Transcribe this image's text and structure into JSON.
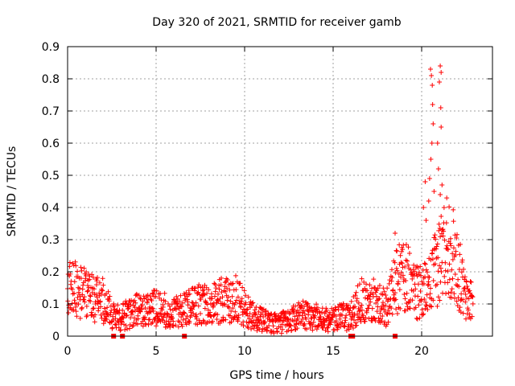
{
  "chart_data": {
    "type": "scatter",
    "title": "Day 320 of 2021, SRMTID for receiver gamb",
    "xlabel": "GPS time / hours",
    "ylabel": "SRMTID / TECUs",
    "xlim": [
      0,
      24
    ],
    "ylim": [
      0,
      0.9
    ],
    "x_ticks": [
      0,
      5,
      10,
      15,
      20
    ],
    "x_tick_labels": [
      "0",
      "5",
      "10",
      "15",
      "20"
    ],
    "y_ticks": [
      0,
      0.1,
      0.2,
      0.3,
      0.4,
      0.5,
      0.6,
      0.7,
      0.8,
      0.9
    ],
    "y_tick_labels": [
      "0",
      "0.1",
      "0.2",
      "0.3",
      "0.4",
      "0.5",
      "0.6",
      "0.7",
      "0.8",
      "0.9"
    ],
    "grid": true,
    "marker": "+",
    "color": "#ff0000",
    "x_data_max": 22.9,
    "envelope_hours": [
      0,
      0.5,
      1,
      1.5,
      2,
      2.5,
      3,
      3.5,
      4,
      4.5,
      5,
      5.5,
      6,
      6.5,
      7,
      7.5,
      8,
      8.5,
      9,
      9.5,
      10,
      10.5,
      11,
      11.5,
      12,
      12.5,
      13,
      13.5,
      14,
      14.5,
      15,
      15.5,
      16,
      16.5,
      17,
      17.5,
      18,
      18.5,
      19,
      19.5,
      20,
      20.5,
      21,
      21.5,
      22,
      22.5,
      23
    ],
    "envelope_mean": [
      0.16,
      0.14,
      0.13,
      0.12,
      0.11,
      0.07,
      0.06,
      0.07,
      0.08,
      0.08,
      0.09,
      0.08,
      0.07,
      0.08,
      0.09,
      0.1,
      0.1,
      0.11,
      0.11,
      0.12,
      0.09,
      0.06,
      0.05,
      0.04,
      0.04,
      0.05,
      0.06,
      0.07,
      0.06,
      0.05,
      0.05,
      0.06,
      0.06,
      0.11,
      0.12,
      0.1,
      0.09,
      0.16,
      0.2,
      0.15,
      0.13,
      0.16,
      0.24,
      0.3,
      0.22,
      0.11,
      0.12
    ],
    "outliers": [
      {
        "x": 18.5,
        "y": 0.32
      },
      {
        "x": 20.5,
        "y": 0.83
      },
      {
        "x": 20.55,
        "y": 0.81
      },
      {
        "x": 20.6,
        "y": 0.78
      },
      {
        "x": 20.62,
        "y": 0.72
      },
      {
        "x": 20.65,
        "y": 0.66
      },
      {
        "x": 20.58,
        "y": 0.6
      },
      {
        "x": 20.52,
        "y": 0.55
      },
      {
        "x": 20.45,
        "y": 0.49
      },
      {
        "x": 20.7,
        "y": 0.45
      },
      {
        "x": 20.4,
        "y": 0.42
      },
      {
        "x": 21.05,
        "y": 0.84
      },
      {
        "x": 21.1,
        "y": 0.82
      },
      {
        "x": 21.0,
        "y": 0.79
      },
      {
        "x": 21.08,
        "y": 0.71
      },
      {
        "x": 21.1,
        "y": 0.65
      },
      {
        "x": 20.9,
        "y": 0.6
      },
      {
        "x": 20.95,
        "y": 0.52
      },
      {
        "x": 21.15,
        "y": 0.47
      },
      {
        "x": 21.05,
        "y": 0.44
      },
      {
        "x": 20.2,
        "y": 0.48
      },
      {
        "x": 20.1,
        "y": 0.4
      },
      {
        "x": 20.25,
        "y": 0.36
      }
    ],
    "zero_markers_hours": [
      2.6,
      3.1,
      6.6,
      16.0,
      16.1,
      18.5
    ]
  }
}
